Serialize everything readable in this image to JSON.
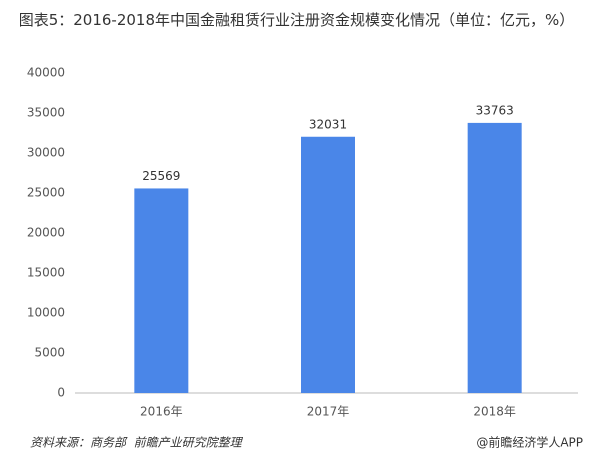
{
  "chart_data": {
    "type": "bar",
    "title": "图表5：2016-2018年中国金融租赁行业注册资金规模变化情况（单位：亿元，%）",
    "categories": [
      "2016年",
      "2017年",
      "2018年"
    ],
    "values": [
      25569,
      32031,
      33763
    ],
    "color": "#4a86e8",
    "ylim": [
      0,
      40000
    ],
    "yticks": [
      0,
      5000,
      10000,
      15000,
      20000,
      25000,
      30000,
      35000,
      40000
    ],
    "grid": false,
    "source": "资料来源：商务部  前瞻产业研究院整理",
    "credit": "@前瞻经济学人APP"
  }
}
